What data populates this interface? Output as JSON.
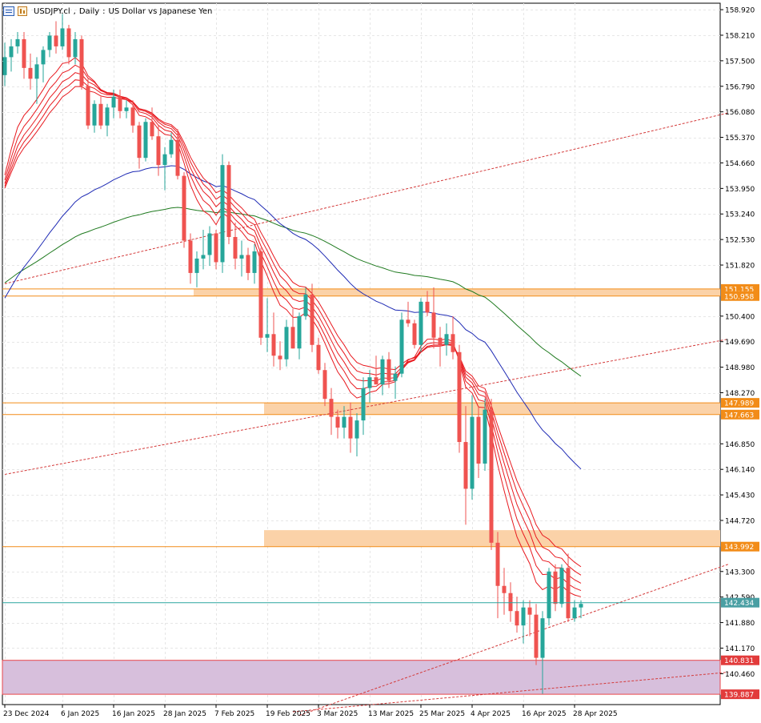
{
  "header": {
    "symbol": "USDJPY.cl",
    "timeframe": "Daily",
    "description": "US Dollar vs Japanese Yen"
  },
  "colors": {
    "background": "#ffffff",
    "grid": "#e6e6e6",
    "bull_candle": "#26a69a",
    "bear_candle": "#ef5350",
    "ribbon": "#e8191f",
    "ma_blue": "#1e2ab4",
    "ma_green": "#1f7a1f",
    "zone_fill": "#fbd2a8",
    "zone_line": "#f28c18",
    "support_fill": "#d7bfdc",
    "support_line": "#e8464a",
    "channel": "#d43a3a",
    "price_line": "#2aa6a0",
    "label_orange": "#f28c18",
    "label_red": "#e23b3b",
    "label_teal": "#4a9fa3"
  },
  "chart_data": {
    "type": "candlestick",
    "title": "USDJPY.cl, Daily: US Dollar vs Japanese Yen",
    "ylim": [
      139.6,
      159.1
    ],
    "y_ticks": [
      "158.920",
      "158.210",
      "157.500",
      "156.790",
      "156.080",
      "155.370",
      "154.660",
      "153.950",
      "153.240",
      "152.530",
      "151.820",
      "150.400",
      "149.690",
      "148.980",
      "148.270",
      "146.850",
      "146.140",
      "145.430",
      "144.720",
      "143.300",
      "142.590",
      "141.880",
      "141.170",
      "140.460"
    ],
    "x_labels": [
      "23 Dec 2024",
      "6 Jan 2025",
      "16 Jan 2025",
      "28 Jan 2025",
      "7 Feb 2025",
      "19 Feb 2025",
      "3 Mar 2025",
      "13 Mar 2025",
      "25 Mar 2025",
      "4 Apr 2025",
      "16 Apr 2025",
      "28 Apr 2025"
    ],
    "x_label_index": [
      0,
      9,
      17,
      25,
      33,
      41,
      49,
      57,
      65,
      73,
      81,
      89
    ],
    "candles": [
      [
        157.1,
        158.0,
        156.8,
        157.6
      ],
      [
        157.6,
        158.1,
        157.2,
        157.9
      ],
      [
        157.9,
        158.3,
        157.7,
        158.1
      ],
      [
        158.1,
        158.3,
        157.0,
        157.3
      ],
      [
        157.3,
        157.7,
        156.7,
        157.0
      ],
      [
        157.0,
        157.6,
        156.3,
        157.4
      ],
      [
        157.4,
        157.9,
        156.9,
        157.8
      ],
      [
        157.8,
        158.3,
        157.6,
        158.2
      ],
      [
        158.2,
        158.6,
        157.7,
        157.9
      ],
      [
        157.9,
        158.8,
        157.8,
        158.4
      ],
      [
        158.4,
        158.5,
        157.4,
        157.6
      ],
      [
        157.6,
        158.3,
        157.4,
        158.1
      ],
      [
        158.1,
        158.2,
        156.7,
        156.8
      ],
      [
        156.8,
        157.0,
        155.6,
        155.7
      ],
      [
        155.7,
        156.4,
        155.5,
        156.3
      ],
      [
        156.3,
        156.5,
        155.6,
        155.7
      ],
      [
        155.7,
        156.3,
        155.4,
        156.2
      ],
      [
        156.2,
        156.7,
        155.9,
        156.5
      ],
      [
        156.5,
        156.7,
        155.9,
        156.1
      ],
      [
        156.1,
        156.4,
        155.9,
        156.2
      ],
      [
        156.2,
        156.4,
        155.5,
        155.7
      ],
      [
        155.7,
        155.8,
        154.5,
        154.8
      ],
      [
        154.8,
        155.9,
        154.7,
        155.8
      ],
      [
        155.8,
        156.2,
        155.3,
        155.4
      ],
      [
        155.4,
        155.7,
        154.3,
        154.6
      ],
      [
        154.6,
        155.1,
        153.9,
        154.9
      ],
      [
        154.9,
        155.5,
        154.8,
        155.3
      ],
      [
        155.3,
        155.6,
        154.2,
        154.3
      ],
      [
        154.3,
        154.4,
        152.3,
        152.5
      ],
      [
        152.5,
        152.7,
        151.3,
        151.6
      ],
      [
        151.6,
        152.2,
        151.2,
        152.0
      ],
      [
        152.0,
        152.8,
        151.7,
        152.1
      ],
      [
        152.1,
        152.9,
        151.8,
        152.7
      ],
      [
        152.7,
        152.8,
        151.7,
        151.9
      ],
      [
        151.9,
        154.9,
        151.6,
        154.6
      ],
      [
        154.6,
        154.7,
        152.4,
        152.6
      ],
      [
        152.6,
        153.0,
        151.7,
        152.0
      ],
      [
        152.0,
        152.5,
        151.5,
        152.1
      ],
      [
        152.1,
        152.3,
        151.4,
        151.6
      ],
      [
        151.6,
        152.4,
        151.3,
        152.2
      ],
      [
        152.2,
        152.3,
        149.6,
        149.8
      ],
      [
        149.8,
        150.9,
        149.4,
        149.9
      ],
      [
        149.9,
        150.5,
        149.0,
        149.3
      ],
      [
        149.3,
        149.7,
        148.9,
        149.2
      ],
      [
        149.2,
        150.3,
        149.0,
        150.1
      ],
      [
        150.1,
        150.6,
        149.5,
        149.5
      ],
      [
        149.5,
        150.5,
        149.2,
        150.4
      ],
      [
        150.4,
        151.2,
        150.3,
        151.0
      ],
      [
        151.0,
        151.3,
        149.4,
        149.6
      ],
      [
        149.6,
        149.8,
        148.8,
        148.9
      ],
      [
        148.9,
        149.1,
        147.9,
        148.1
      ],
      [
        148.1,
        148.4,
        147.1,
        147.6
      ],
      [
        147.6,
        147.8,
        147.0,
        147.3
      ],
      [
        147.3,
        147.9,
        147.0,
        147.6
      ],
      [
        147.6,
        148.0,
        146.6,
        147.0
      ],
      [
        147.0,
        147.7,
        146.5,
        147.5
      ],
      [
        147.5,
        148.7,
        147.1,
        148.4
      ],
      [
        148.4,
        148.9,
        148.0,
        148.7
      ],
      [
        148.7,
        149.3,
        148.5,
        148.5
      ],
      [
        148.5,
        149.3,
        148.2,
        149.2
      ],
      [
        149.2,
        149.4,
        148.4,
        148.6
      ],
      [
        148.6,
        149.0,
        148.1,
        148.8
      ],
      [
        148.8,
        150.5,
        148.7,
        150.3
      ],
      [
        150.3,
        150.8,
        150.1,
        150.2
      ],
      [
        150.2,
        150.3,
        149.5,
        149.6
      ],
      [
        149.6,
        150.9,
        149.4,
        150.8
      ],
      [
        150.8,
        151.1,
        150.4,
        150.5
      ],
      [
        150.5,
        151.2,
        149.5,
        149.8
      ],
      [
        149.8,
        150.1,
        149.0,
        149.6
      ],
      [
        149.6,
        150.2,
        149.3,
        149.9
      ],
      [
        149.9,
        150.4,
        149.2,
        149.4
      ],
      [
        149.4,
        149.6,
        146.6,
        146.9
      ],
      [
        146.9,
        147.9,
        144.6,
        145.6
      ],
      [
        145.6,
        148.2,
        145.3,
        147.6
      ],
      [
        147.6,
        147.9,
        145.9,
        146.3
      ],
      [
        146.3,
        148.1,
        146.1,
        147.8
      ],
      [
        147.8,
        148.1,
        143.9,
        144.1
      ],
      [
        144.1,
        144.4,
        142.0,
        142.9
      ],
      [
        142.9,
        143.4,
        142.1,
        142.7
      ],
      [
        142.7,
        143.0,
        141.9,
        142.2
      ],
      [
        142.2,
        142.6,
        141.6,
        141.8
      ],
      [
        141.8,
        142.5,
        141.3,
        142.3
      ],
      [
        142.3,
        142.5,
        141.5,
        142.1
      ],
      [
        142.1,
        142.4,
        140.7,
        140.9
      ],
      [
        140.9,
        142.2,
        139.9,
        142.0
      ],
      [
        142.0,
        143.4,
        141.8,
        143.3
      ],
      [
        143.3,
        143.5,
        142.2,
        142.4
      ],
      [
        142.4,
        143.5,
        142.3,
        143.4
      ],
      [
        143.4,
        143.8,
        141.9,
        142.0
      ],
      [
        142.0,
        142.5,
        141.9,
        142.3
      ],
      [
        142.3,
        142.5,
        142.0,
        142.4
      ]
    ],
    "zones": [
      {
        "top": 151.155,
        "bottom": 150.958,
        "label_top": "151.155",
        "label_bottom": "150.958",
        "from_index": 30
      },
      {
        "top": 147.989,
        "bottom": 147.663,
        "label_top": "147.989",
        "label_bottom": "147.663",
        "from_index": 41
      },
      {
        "top": 144.45,
        "bottom": 143.992,
        "label_top": "",
        "label_bottom": "143.992",
        "from_index": 41
      }
    ],
    "support_zone": {
      "top": 140.831,
      "bottom": 139.887,
      "label_top": "140.831",
      "label_bottom": "139.887"
    },
    "current_price": "142.434",
    "grid": true,
    "legend": "none"
  }
}
